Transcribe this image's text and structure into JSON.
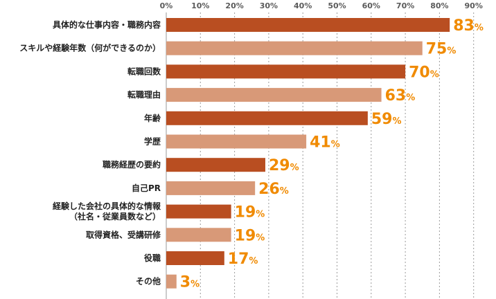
{
  "chart_data": {
    "type": "bar",
    "orientation": "horizontal",
    "x_ticks": [
      "0%",
      "10%",
      "20%",
      "30%",
      "40%",
      "50%",
      "60%",
      "70%",
      "80%",
      "90%"
    ],
    "xlim": [
      0,
      90
    ],
    "grid": true,
    "unit": "%",
    "categories": [
      [
        "具体的な仕事内容・職務内容"
      ],
      [
        "スキルや経験年数（何ができるのか）"
      ],
      [
        "転職回数"
      ],
      [
        "転職理由"
      ],
      [
        "年齢"
      ],
      [
        "学歴"
      ],
      [
        "職務経歴の要約"
      ],
      [
        "自己PR"
      ],
      [
        "経験した会社の具体的な情報",
        "（社名・従業員数など）"
      ],
      [
        "取得資格、受講研修"
      ],
      [
        "役職"
      ],
      [
        "その他"
      ]
    ],
    "values": [
      83,
      75,
      70,
      63,
      59,
      41,
      29,
      26,
      19,
      19,
      17,
      3
    ],
    "colors": {
      "dark": "#b94e21",
      "light": "#d89978",
      "value_text": "#f08a00"
    }
  }
}
